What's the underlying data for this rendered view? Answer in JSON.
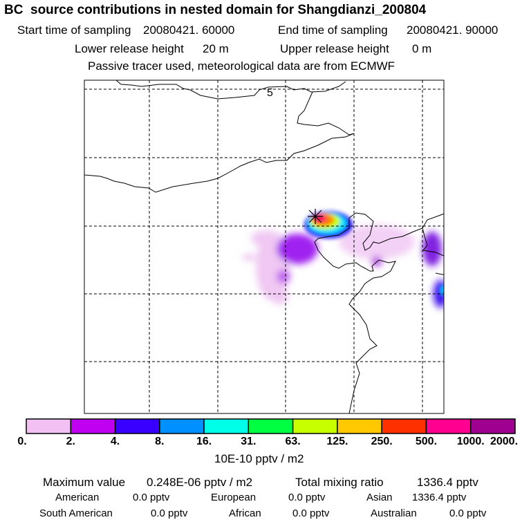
{
  "header": {
    "title": "BC  source contributions in nested domain for Shangdianzi_200804",
    "start_label": "Start time of sampling",
    "start_value": "20080421. 60000",
    "end_label": "End time of sampling",
    "end_value": "20080421. 90000",
    "lower_label": "Lower release height",
    "lower_value": "20 m",
    "upper_label": "Upper release height",
    "upper_value": "0 m",
    "note": "Passive tracer used, meteorological data are from ECMWF"
  },
  "chart_data": {
    "type": "heatmap",
    "title": "BC  source contributions in nested domain for Shangdianzi_200804",
    "map_label": "5",
    "receptor": "Shangdianzi",
    "colorbar": {
      "ticks": [
        "0.",
        "2.",
        "4.",
        "8.",
        "16.",
        "31.",
        "63.",
        "125.",
        "250.",
        "500.",
        "1000.",
        "2000."
      ],
      "unit": "10E-10 pptv / m2",
      "colors": [
        "#f3c0f3",
        "#c000f0",
        "#3a00ff",
        "#0090ff",
        "#00ffe8",
        "#00ff40",
        "#c8ff00",
        "#ffc800",
        "#ff3000",
        "#ff0090",
        "#a00090"
      ]
    },
    "grid": true
  },
  "footer": {
    "max_label": "Maximum value",
    "max_value": "0.248E-06 pptv / m2",
    "total_label": "Total mixing ratio",
    "total_value": "1336.4 pptv",
    "regions": [
      {
        "name": "American",
        "value": "0.0 pptv"
      },
      {
        "name": "European",
        "value": "0.0 pptv"
      },
      {
        "name": "Asian",
        "value": "1336.4 pptv"
      },
      {
        "name": "South American",
        "value": "0.0 pptv"
      },
      {
        "name": "African",
        "value": "0.0 pptv"
      },
      {
        "name": "Australian",
        "value": "0.0 pptv"
      }
    ]
  }
}
